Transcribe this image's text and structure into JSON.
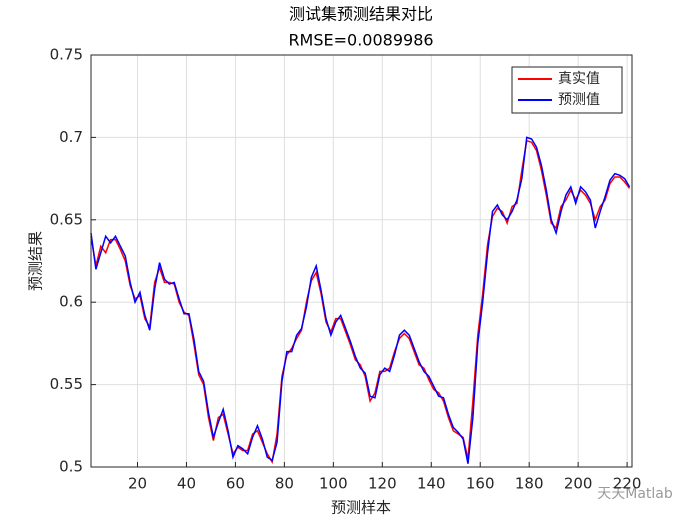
{
  "chart_data": {
    "type": "line",
    "title": "测试集预测结果对比",
    "subtitle": "RMSE=0.0089986",
    "x_label": "预测样本",
    "y_label": "预测结果",
    "watermark": "天天Matlab",
    "x": [
      1,
      3,
      5,
      7,
      9,
      11,
      13,
      15,
      17,
      19,
      21,
      23,
      25,
      27,
      29,
      31,
      33,
      35,
      37,
      39,
      41,
      43,
      45,
      47,
      49,
      51,
      53,
      55,
      57,
      59,
      61,
      63,
      65,
      67,
      69,
      71,
      73,
      75,
      77,
      79,
      81,
      83,
      85,
      87,
      89,
      91,
      93,
      95,
      97,
      99,
      101,
      103,
      105,
      107,
      109,
      111,
      113,
      115,
      117,
      119,
      121,
      123,
      125,
      127,
      129,
      131,
      133,
      135,
      137,
      139,
      141,
      143,
      145,
      147,
      149,
      151,
      153,
      155,
      157,
      159,
      161,
      163,
      165,
      167,
      169,
      171,
      173,
      175,
      177,
      179,
      181,
      183,
      185,
      187,
      189,
      191,
      193,
      195,
      197,
      199,
      201,
      203,
      205,
      207,
      209,
      211,
      213,
      215,
      217,
      219,
      221
    ],
    "series": [
      {
        "name": "真实值",
        "color": "#ff0000",
        "values": [
          0.64,
          0.622,
          0.634,
          0.63,
          0.638,
          0.638,
          0.632,
          0.625,
          0.61,
          0.602,
          0.604,
          0.59,
          0.585,
          0.612,
          0.621,
          0.612,
          0.612,
          0.611,
          0.6,
          0.594,
          0.592,
          0.575,
          0.556,
          0.55,
          0.53,
          0.516,
          0.53,
          0.532,
          0.52,
          0.508,
          0.512,
          0.51,
          0.51,
          0.52,
          0.522,
          0.515,
          0.508,
          0.503,
          0.52,
          0.555,
          0.568,
          0.572,
          0.578,
          0.583,
          0.6,
          0.613,
          0.618,
          0.605,
          0.588,
          0.582,
          0.59,
          0.59,
          0.582,
          0.574,
          0.565,
          0.562,
          0.555,
          0.54,
          0.545,
          0.558,
          0.558,
          0.56,
          0.57,
          0.578,
          0.581,
          0.578,
          0.57,
          0.562,
          0.56,
          0.553,
          0.547,
          0.545,
          0.54,
          0.53,
          0.522,
          0.52,
          0.518,
          0.505,
          0.54,
          0.58,
          0.605,
          0.635,
          0.652,
          0.657,
          0.655,
          0.648,
          0.658,
          0.66,
          0.68,
          0.698,
          0.697,
          0.692,
          0.68,
          0.665,
          0.648,
          0.645,
          0.658,
          0.662,
          0.668,
          0.662,
          0.668,
          0.665,
          0.66,
          0.65,
          0.658,
          0.662,
          0.672,
          0.676,
          0.676,
          0.673,
          0.669
        ]
      },
      {
        "name": "预测值",
        "color": "#0000ff",
        "values": [
          0.642,
          0.62,
          0.63,
          0.64,
          0.636,
          0.64,
          0.634,
          0.628,
          0.612,
          0.6,
          0.606,
          0.592,
          0.583,
          0.608,
          0.624,
          0.614,
          0.611,
          0.612,
          0.602,
          0.593,
          0.593,
          0.578,
          0.558,
          0.552,
          0.533,
          0.518,
          0.527,
          0.535,
          0.522,
          0.506,
          0.513,
          0.511,
          0.508,
          0.518,
          0.525,
          0.517,
          0.506,
          0.504,
          0.515,
          0.552,
          0.57,
          0.57,
          0.58,
          0.584,
          0.597,
          0.615,
          0.622,
          0.607,
          0.59,
          0.58,
          0.588,
          0.592,
          0.584,
          0.576,
          0.567,
          0.56,
          0.557,
          0.543,
          0.542,
          0.556,
          0.56,
          0.558,
          0.568,
          0.58,
          0.583,
          0.58,
          0.572,
          0.564,
          0.558,
          0.555,
          0.549,
          0.543,
          0.542,
          0.532,
          0.524,
          0.521,
          0.517,
          0.502,
          0.53,
          0.575,
          0.6,
          0.63,
          0.655,
          0.659,
          0.653,
          0.65,
          0.655,
          0.662,
          0.675,
          0.7,
          0.699,
          0.694,
          0.683,
          0.668,
          0.65,
          0.642,
          0.655,
          0.665,
          0.67,
          0.66,
          0.67,
          0.667,
          0.662,
          0.645,
          0.655,
          0.664,
          0.674,
          0.678,
          0.677,
          0.675,
          0.67
        ]
      }
    ],
    "xlim": [
      1,
      222
    ],
    "xticks": [
      20,
      40,
      60,
      80,
      100,
      120,
      140,
      160,
      180,
      200,
      220
    ],
    "ylim": [
      0.5,
      0.75
    ],
    "yticks": [
      0.5,
      0.55,
      0.6,
      0.65,
      0.7,
      0.75
    ],
    "grid": true,
    "legend": "upper right"
  }
}
